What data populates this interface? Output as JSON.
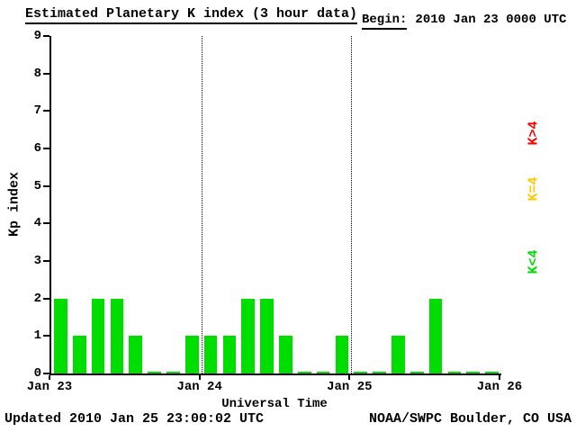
{
  "title": "Estimated Planetary K index (3 hour data)",
  "begin": {
    "label": "Begin:",
    "value": "2010 Jan 23 0000 UTC"
  },
  "footer": {
    "updated": "Updated 2010 Jan 25 23:00:02 UTC",
    "credit": "NOAA/SWPC Boulder, CO USA"
  },
  "legend": [
    {
      "label": "K>4",
      "color": "#FF0000"
    },
    {
      "label": "K=4",
      "color": "#FFC800"
    },
    {
      "label": "K<4",
      "color": "#00DD00"
    }
  ],
  "colors": {
    "k_gt4": "#FF0000",
    "k_eq4": "#FFC800",
    "k_lt4": "#00DD00",
    "axis": "#000000",
    "background": "#FFFFFF"
  },
  "chart_data": {
    "type": "bar",
    "title": "Estimated Planetary K index (3 hour data)",
    "xlabel": "Universal Time",
    "ylabel": "Kp index",
    "ylim": [
      0,
      9
    ],
    "yticks": [
      0,
      1,
      2,
      3,
      4,
      5,
      6,
      7,
      8,
      9
    ],
    "xticks": [
      "Jan 23",
      "Jan 24",
      "Jan 25",
      "Jan 26"
    ],
    "bin_hours": 3,
    "values": [
      2,
      1,
      2,
      2,
      1,
      0,
      0,
      1,
      1,
      1,
      2,
      2,
      1,
      0,
      0,
      1,
      0,
      0,
      1,
      0,
      2,
      0,
      0,
      0
    ],
    "color_rule": {
      "lt4": "green",
      "eq4": "yellow",
      "gt4": "red"
    },
    "grid": "vertical dotted lines at day boundaries",
    "legend_position": "right, rotated"
  }
}
